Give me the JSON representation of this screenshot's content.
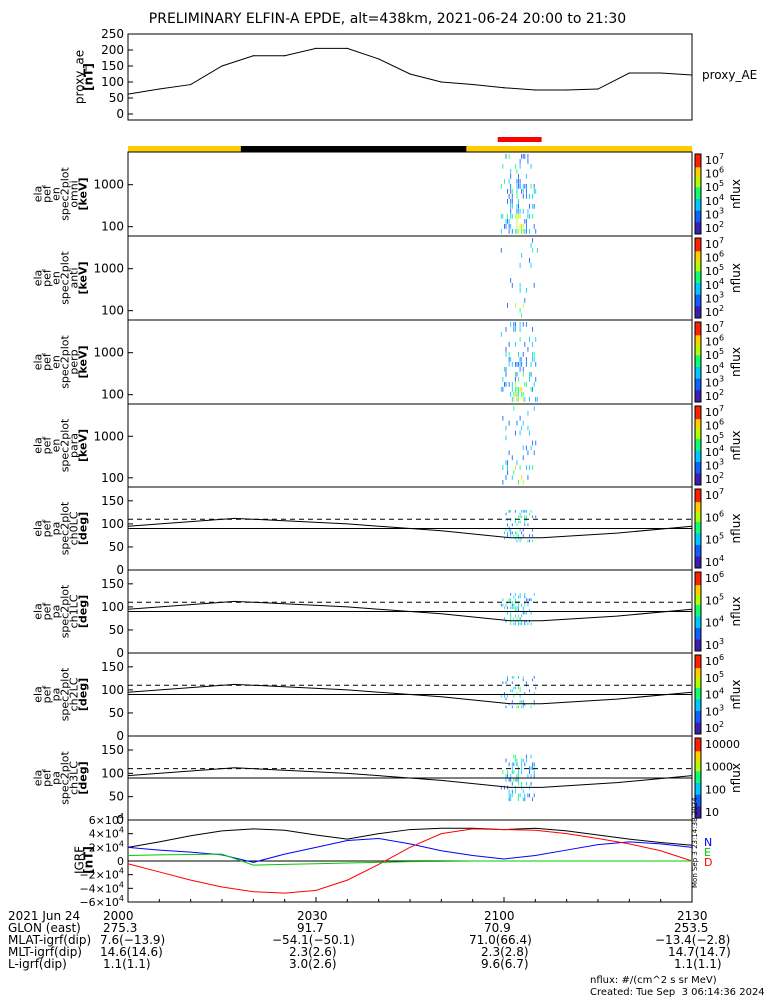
{
  "title": "PRELIMINARY ELFIN-A EPDE, alt=438km, 2021-06-24 20:00 to 21:30",
  "chart_data": [
    {
      "type": "line",
      "panel": "proxy_ae",
      "ylabel": [
        "proxy_ae",
        "[nT]"
      ],
      "legend": "proxy_AE",
      "ylim": [
        0,
        250
      ],
      "yticks": [
        "250",
        "200",
        "150",
        "100",
        "50",
        "0"
      ],
      "x_minutes": [
        0,
        5,
        10,
        15,
        20,
        25,
        30,
        35,
        40,
        45,
        50,
        55,
        60,
        65,
        70,
        75,
        80,
        85,
        90
      ],
      "values": [
        62,
        78,
        92,
        150,
        182,
        182,
        205,
        205,
        172,
        125,
        100,
        92,
        82,
        75,
        75,
        78,
        128,
        128,
        122
      ]
    },
    {
      "type": "heatmap",
      "panel": "ela_pef_en_spec2plot_omni",
      "ylabel": [
        "ela",
        "pef",
        "en",
        "spec2plot",
        "omni",
        "[keV]"
      ],
      "yscale": "log",
      "ylim_keV": [
        60,
        6000
      ],
      "yticks": [
        "1000",
        "100"
      ],
      "colorbar": {
        "label": "nflux",
        "ticks": [
          "10^7",
          "10^6",
          "10^5",
          "10^4",
          "10^3",
          "10^2"
        ]
      }
    },
    {
      "type": "heatmap",
      "panel": "ela_pef_en_spec2plot_anti",
      "ylabel": [
        "ela",
        "pef",
        "en",
        "spec2plot",
        "anti",
        "[keV]"
      ],
      "yscale": "log",
      "ylim_keV": [
        60,
        6000
      ],
      "yticks": [
        "1000",
        "100"
      ],
      "colorbar": {
        "label": "nflux",
        "ticks": [
          "10^7",
          "10^6",
          "10^5",
          "10^4",
          "10^3",
          "10^2"
        ]
      }
    },
    {
      "type": "heatmap",
      "panel": "ela_pef_en_spec2plot_perp",
      "ylabel": [
        "ela",
        "pef",
        "en",
        "spec2plot",
        "perp",
        "[keV]"
      ],
      "yscale": "log",
      "ylim_keV": [
        60,
        6000
      ],
      "yticks": [
        "1000",
        "100"
      ],
      "colorbar": {
        "label": "nflux",
        "ticks": [
          "10^7",
          "10^6",
          "10^5",
          "10^4",
          "10^3",
          "10^2"
        ]
      }
    },
    {
      "type": "heatmap",
      "panel": "ela_pef_en_spec2plot_para",
      "ylabel": [
        "ela",
        "pef",
        "en",
        "spec2plot",
        "para",
        "[keV]"
      ],
      "yscale": "log",
      "ylim_keV": [
        60,
        6000
      ],
      "yticks": [
        "1000",
        "100"
      ],
      "colorbar": {
        "label": "nflux",
        "ticks": [
          "10^7",
          "10^6",
          "10^5",
          "10^4",
          "10^3",
          "10^2"
        ]
      }
    },
    {
      "type": "heatmap",
      "panel": "ela_pef_pa_spec2plot_ch0LC",
      "ylabel": [
        "ela",
        "pef",
        "pa",
        "spec2plot",
        "ch0LC",
        "[deg]"
      ],
      "ylim": [
        0,
        180
      ],
      "yticks": [
        "150",
        "100",
        "50",
        "0"
      ],
      "colorbar": {
        "label": "nflux",
        "ticks": [
          "10^7",
          "10^6",
          "10^5",
          "10^4"
        ]
      }
    },
    {
      "type": "heatmap",
      "panel": "ela_pef_pa_spec2plot_ch1LC",
      "ylabel": [
        "ela",
        "pef",
        "pa",
        "spec2plot",
        "ch1LC",
        "[deg]"
      ],
      "ylim": [
        0,
        180
      ],
      "yticks": [
        "150",
        "100",
        "50",
        "0"
      ],
      "colorbar": {
        "label": "nflux",
        "ticks": [
          "10^6",
          "10^5",
          "10^4",
          "10^3"
        ]
      }
    },
    {
      "type": "heatmap",
      "panel": "ela_pef_pa_spec2plot_ch2LC",
      "ylabel": [
        "ela",
        "pef",
        "pa",
        "spec2plot",
        "ch2LC",
        "[deg]"
      ],
      "ylim": [
        0,
        180
      ],
      "yticks": [
        "150",
        "100",
        "50",
        "0"
      ],
      "colorbar": {
        "label": "nflux",
        "ticks": [
          "10^6",
          "10^5",
          "10^4",
          "10^3",
          "10^2"
        ]
      }
    },
    {
      "type": "heatmap",
      "panel": "ela_pef_pa_spec2plot_ch3LC",
      "ylabel": [
        "ela",
        "pef",
        "pa",
        "spec2plot",
        "ch3LC",
        "[deg]"
      ],
      "ylim": [
        0,
        180
      ],
      "yticks": [
        "150",
        "100",
        "50",
        "0"
      ],
      "colorbar": {
        "label": "nflux",
        "ticks": [
          "10000",
          "1000",
          "100",
          "10"
        ]
      }
    },
    {
      "type": "line",
      "panel": "IGRF",
      "ylabel": [
        "IGRF",
        "[nT]"
      ],
      "ylim": [
        -60000,
        60000
      ],
      "yticks": [
        "6×10^4",
        "4×10^4",
        "2×10^4",
        "0",
        "−2×10^4",
        "−4×10^4",
        "−6×10^4"
      ],
      "legend": [
        "N",
        "E",
        "D"
      ],
      "stamp": "Mon Sep  3 23:14:38 2024",
      "x_minutes": [
        0,
        5,
        10,
        15,
        20,
        25,
        30,
        35,
        40,
        45,
        50,
        55,
        60,
        65,
        70,
        75,
        80,
        85,
        90
      ],
      "series": [
        {
          "name": "N",
          "color": "#000000",
          "values": [
            20000,
            28000,
            37000,
            44000,
            47000,
            45000,
            38000,
            32000,
            40000,
            46000,
            48000,
            48000,
            46000,
            48000,
            44000,
            38000,
            32000,
            27000,
            23000
          ]
        },
        {
          "name": "E",
          "color": "#0000ff",
          "values": [
            20000,
            16000,
            13000,
            9000,
            -2000,
            10000,
            20000,
            30000,
            33000,
            25000,
            15000,
            8000,
            3000,
            8000,
            16000,
            24000,
            28000,
            25000,
            20000
          ]
        },
        {
          "name": "D",
          "color": "#ff0000",
          "values": [
            -4000,
            -16000,
            -28000,
            -38000,
            -45000,
            -47000,
            -43000,
            -28000,
            -5000,
            20000,
            40000,
            47000,
            46000,
            45000,
            40000,
            33000,
            25000,
            15000,
            0
          ]
        },
        {
          "name": "total",
          "color": "#00cc00",
          "values": [
            8000,
            9000,
            9500,
            10000,
            -6000,
            -5000,
            -4000,
            -3000,
            -2000,
            -1000,
            -500,
            0,
            0,
            0,
            0,
            0,
            0,
            0,
            0
          ]
        }
      ]
    }
  ],
  "orbit_bar": {
    "segments": [
      {
        "from": 0,
        "to": 18,
        "color": "#ffcc00"
      },
      {
        "from": 18,
        "to": 54,
        "color": "#000000"
      },
      {
        "from": 54,
        "to": 90,
        "color": "#ffcc00"
      }
    ],
    "science_zone": {
      "from": 59,
      "to": 66,
      "color": "#ff0000"
    }
  },
  "footer": {
    "rows": [
      [
        "2021 Jun 24",
        "2000",
        "2030",
        "2100",
        "2130"
      ],
      [
        "GLON (east)",
        "275.3",
        "91.7",
        "70.9",
        "253.5"
      ],
      [
        "MLAT-igrf(dip)",
        "7.6(−13.9)",
        "−54.1(−50.1)",
        "71.0(66.4)",
        "−13.4(−2.8)"
      ],
      [
        "MLT-igrf(dip)",
        "14.6(14.6)",
        "2.3(2.6)",
        "2.3(2.8)",
        "14.7(14.7)"
      ],
      [
        "L-igrf(dip)",
        "1.1(1.1)",
        "3.0(2.6)",
        "9.6(6.7)",
        "1.1(1.1)"
      ]
    ],
    "units_note": "nflux: #/(cm^2 s sr MeV)",
    "created": "Created: Tue Sep  3 06:14:36 2024"
  }
}
